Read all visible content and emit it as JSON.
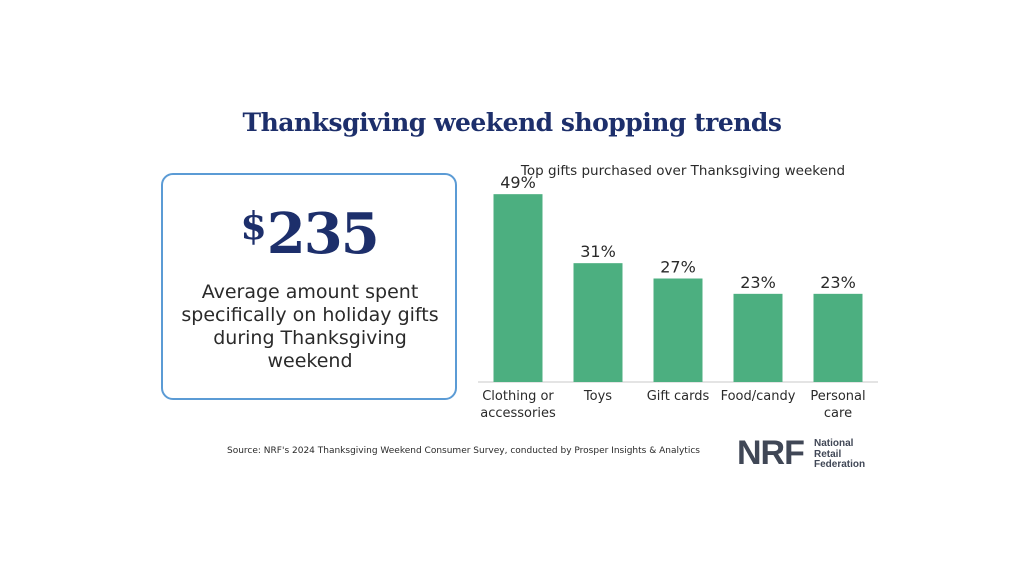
{
  "title": "Thanksgiving weekend shopping trends",
  "stat": {
    "currency": "$",
    "amount": "235",
    "description": "Average amount spent specifically on holiday gifts during Thanksgiving weekend"
  },
  "chart_data": {
    "type": "bar",
    "title": "Top gifts purchased over Thanksgiving weekend",
    "categories": [
      [
        "Clothing or",
        "accessories"
      ],
      [
        "Toys"
      ],
      [
        "Gift cards"
      ],
      [
        "Food/candy"
      ],
      [
        "Personal",
        "care"
      ]
    ],
    "values": [
      49,
      31,
      27,
      23,
      23
    ],
    "value_suffix": "%",
    "xlabel": "",
    "ylabel": "",
    "ylim": [
      0,
      60
    ],
    "grid": false,
    "bar_color": "#4caf80"
  },
  "source": "Source: NRF's 2024 Thanksgiving Weekend Consumer Survey, conducted by Prosper Insights & Analytics",
  "logo": {
    "mark": "NRF",
    "lines": [
      "National",
      "Retail",
      "Federation"
    ]
  },
  "colors": {
    "title": "#1d2f6b",
    "card_border": "#5b9bd5",
    "bar": "#4caf80"
  }
}
